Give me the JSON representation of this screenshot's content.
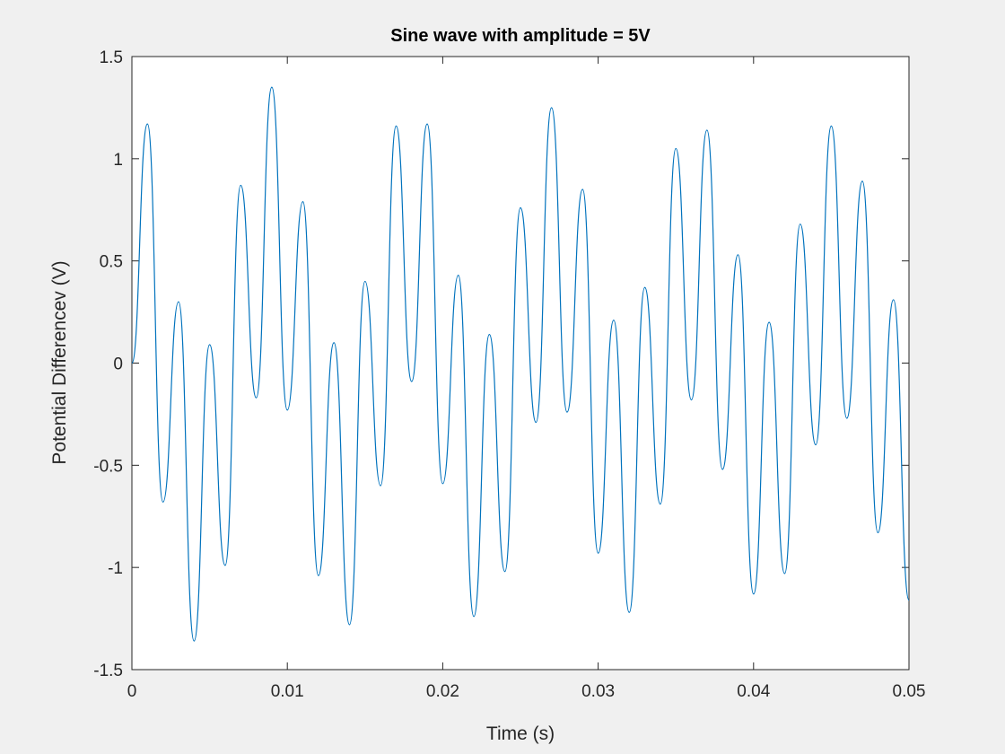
{
  "chart_data": {
    "type": "line",
    "title": "Sine wave with amplitude = 5V",
    "x_label": "Time (s)",
    "y_label": "Potential Differencev (V)",
    "x": [
      0,
      0.001,
      0.002,
      0.003,
      0.004,
      0.005,
      0.006,
      0.007,
      0.008,
      0.009,
      0.01,
      0.011,
      0.012,
      0.013,
      0.014,
      0.015,
      0.016,
      0.017,
      0.018,
      0.019,
      0.02,
      0.021,
      0.022,
      0.023,
      0.024,
      0.025,
      0.026,
      0.027,
      0.028,
      0.029,
      0.03,
      0.031,
      0.032,
      0.033,
      0.034,
      0.035,
      0.036,
      0.037,
      0.038,
      0.039,
      0.04,
      0.041,
      0.042,
      0.043,
      0.044,
      0.045,
      0.046,
      0.047,
      0.048,
      0.049,
      0.05
    ],
    "series": [
      {
        "color": "#0072bd",
        "values": [
          0,
          1.17,
          -0.68,
          0.3,
          -1.36,
          0.09,
          -0.99,
          0.87,
          -0.17,
          1.35,
          -0.23,
          0.79,
          -1.04,
          0.1,
          -1.28,
          0.4,
          -0.6,
          1.16,
          -0.09,
          1.17,
          -0.59,
          0.43,
          -1.24,
          0.14,
          -1.02,
          0.76,
          -0.29,
          1.25,
          -0.24,
          0.85,
          -0.93,
          0.21,
          -1.22,
          0.37,
          -0.69,
          1.05,
          -0.18,
          1.14,
          -0.52,
          0.53,
          -1.13,
          0.2,
          -1.03,
          0.68,
          -0.4,
          1.16,
          -0.27,
          0.89,
          -0.83,
          0.31,
          -1.16
        ]
      }
    ],
    "xlim": [
      0,
      0.05
    ],
    "xticks": [
      0,
      0.01,
      0.02,
      0.03,
      0.04,
      0.05
    ],
    "ylim": [
      -1.5,
      1.5
    ],
    "yticks": [
      -1.5,
      -1,
      -0.5,
      0,
      0.5,
      1,
      1.5
    ]
  }
}
